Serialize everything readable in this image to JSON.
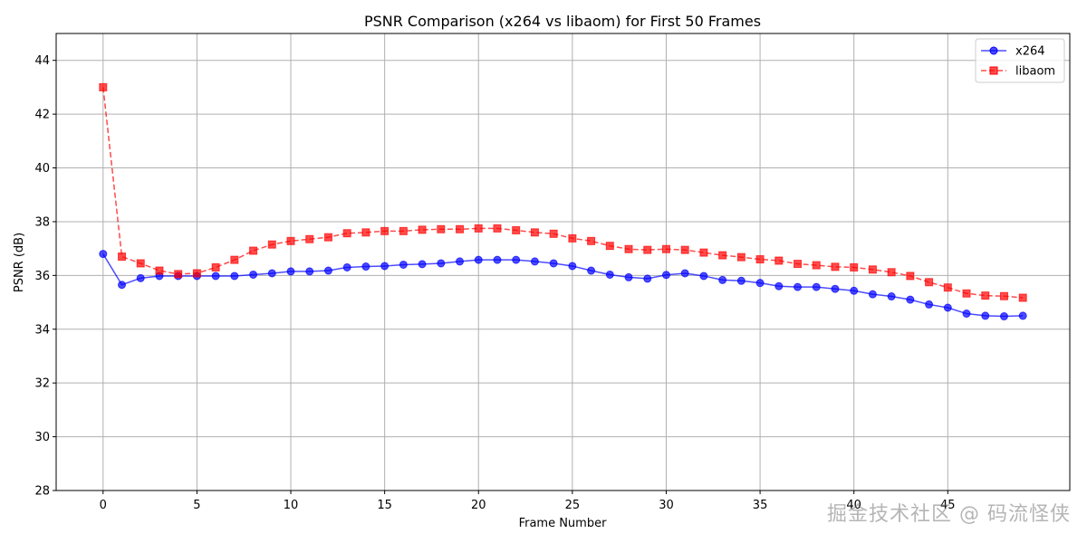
{
  "chart_data": {
    "type": "line",
    "title": "PSNR Comparison (x264 vs libaom) for First 50 Frames",
    "xlabel": "Frame Number",
    "ylabel": "PSNR (dB)",
    "xlim": [
      -2.5,
      51.5
    ],
    "ylim": [
      28,
      45
    ],
    "xticks": [
      0,
      5,
      10,
      15,
      20,
      25,
      30,
      35,
      40,
      45
    ],
    "yticks": [
      28,
      30,
      32,
      34,
      36,
      38,
      40,
      42,
      44
    ],
    "grid": true,
    "legend_position": "top-right",
    "x": [
      0,
      1,
      2,
      3,
      4,
      5,
      6,
      7,
      8,
      9,
      10,
      11,
      12,
      13,
      14,
      15,
      16,
      17,
      18,
      19,
      20,
      21,
      22,
      23,
      24,
      25,
      26,
      27,
      28,
      29,
      30,
      31,
      32,
      33,
      34,
      35,
      36,
      37,
      38,
      39,
      40,
      41,
      42,
      43,
      44,
      45,
      46,
      47,
      48,
      49
    ],
    "series": [
      {
        "name": "x264",
        "color": "#0000ff",
        "line_style": "solid",
        "marker": "circle",
        "values": [
          36.8,
          35.65,
          35.9,
          35.98,
          35.98,
          35.98,
          35.98,
          35.98,
          36.03,
          36.08,
          36.15,
          36.15,
          36.18,
          36.3,
          36.33,
          36.35,
          36.4,
          36.42,
          36.45,
          36.52,
          36.58,
          36.58,
          36.58,
          36.52,
          36.45,
          36.35,
          36.18,
          36.03,
          35.93,
          35.88,
          36.02,
          36.08,
          35.98,
          35.83,
          35.8,
          35.72,
          35.6,
          35.57,
          35.57,
          35.5,
          35.43,
          35.3,
          35.22,
          35.1,
          34.92,
          34.8,
          34.58,
          34.5,
          34.48,
          34.5
        ]
      },
      {
        "name": "libaom",
        "color": "#ff0000",
        "line_style": "dashed",
        "marker": "square",
        "values": [
          43.0,
          36.7,
          36.45,
          36.18,
          36.05,
          36.08,
          36.3,
          36.58,
          36.92,
          37.15,
          37.28,
          37.35,
          37.42,
          37.57,
          37.6,
          37.65,
          37.65,
          37.7,
          37.72,
          37.72,
          37.75,
          37.75,
          37.68,
          37.6,
          37.55,
          37.38,
          37.28,
          37.1,
          36.98,
          36.95,
          36.98,
          36.95,
          36.85,
          36.75,
          36.68,
          36.6,
          36.55,
          36.43,
          36.38,
          36.32,
          36.3,
          36.22,
          36.12,
          35.98,
          35.75,
          35.55,
          35.33,
          35.25,
          35.23,
          35.17
        ]
      }
    ]
  },
  "watermark": "掘金技术社区 @ 码流怪侠"
}
